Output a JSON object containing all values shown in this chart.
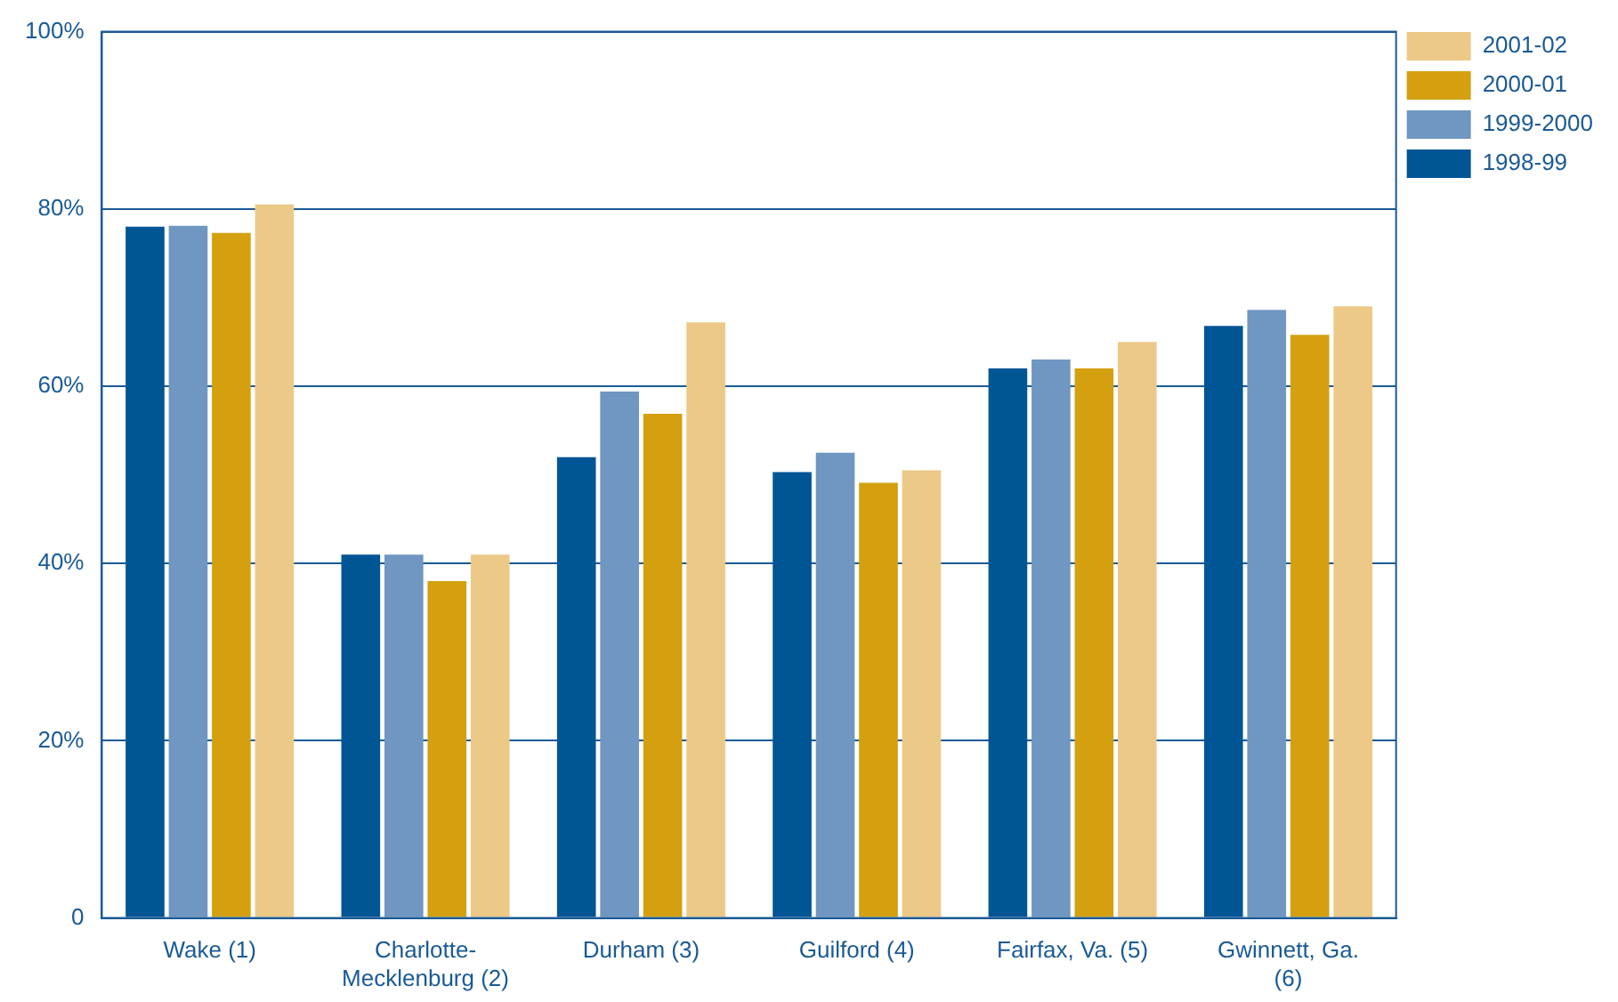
{
  "chart_data": {
    "type": "bar",
    "categories": [
      "Wake (1)",
      "Charlotte-Mecklenburg (2)",
      "Durham (3)",
      "Guilford (4)",
      "Fairfax, Va. (5)",
      "Gwinnett, Ga. (6)"
    ],
    "series": [
      {
        "name": "1998-99",
        "color": "#005595",
        "values": [
          78,
          41,
          52,
          50.3,
          62,
          66.8
        ]
      },
      {
        "name": "1999-2000",
        "color": "#7096c2",
        "values": [
          78.1,
          41,
          59.4,
          52.5,
          63,
          68.6
        ]
      },
      {
        "name": "2000-01",
        "color": "#d4a010",
        "values": [
          77.3,
          38,
          56.9,
          49.1,
          62,
          65.8
        ]
      },
      {
        "name": "2001-02",
        "color": "#ecc987",
        "values": [
          80.5,
          41,
          67.2,
          50.5,
          65,
          69
        ]
      }
    ],
    "ylim": [
      0,
      100
    ],
    "yticks": [
      {
        "value": 0,
        "label": "0"
      },
      {
        "value": 20,
        "label": "20%"
      },
      {
        "value": 40,
        "label": "40%"
      },
      {
        "value": 60,
        "label": "60%"
      },
      {
        "value": 80,
        "label": "80%"
      },
      {
        "value": 100,
        "label": "100%"
      }
    ],
    "grid": "y",
    "legend": "top right"
  }
}
